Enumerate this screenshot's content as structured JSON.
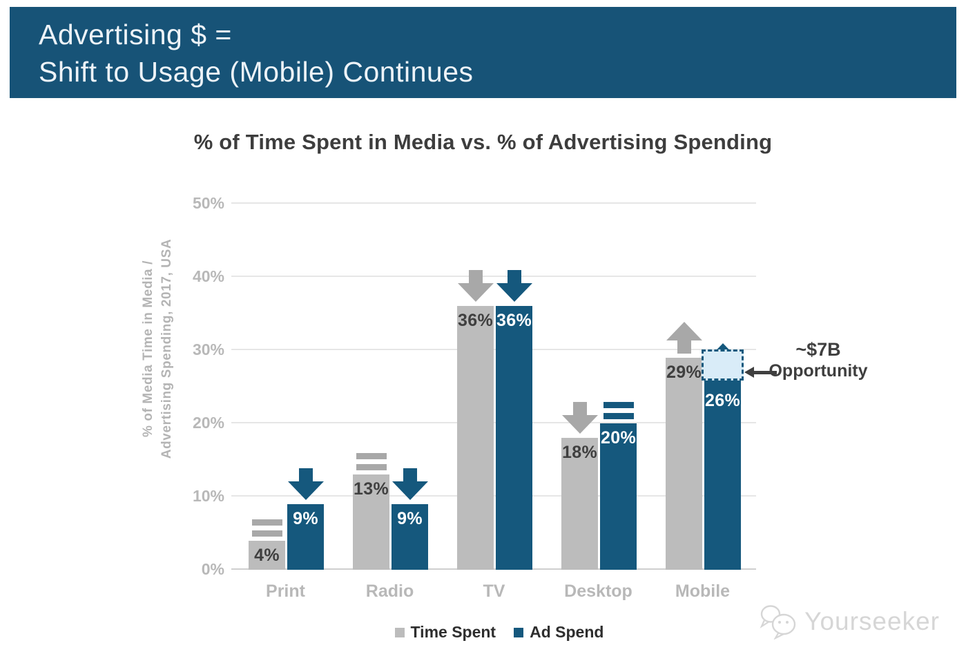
{
  "banner": {
    "line1": "Advertising $ =",
    "line2": "Shift to Usage (Mobile) Continues"
  },
  "chart_data": {
    "type": "bar",
    "title": "% of Time Spent in Media vs. % of Advertising Spending",
    "ylabel": [
      "% of Media Time in Media /",
      "Advertising Spending, 2017, USA"
    ],
    "categories": [
      "Print",
      "Radio",
      "TV",
      "Desktop",
      "Mobile"
    ],
    "series": [
      {
        "name": "Time Spent",
        "values": [
          4,
          13,
          36,
          18,
          29
        ],
        "unit": "%",
        "trend_markers": [
          "flat",
          "flat",
          "down",
          "down",
          "up"
        ],
        "bar_color": "#bcbcbc",
        "marker_color": "#a8a8a8",
        "label_color": "#3f3f3f"
      },
      {
        "name": "Ad Spend",
        "values": [
          9,
          9,
          36,
          20,
          26
        ],
        "unit": "%",
        "trend_markers": [
          "down",
          "down",
          "down",
          "flat",
          "up"
        ],
        "bar_color": "#15587d",
        "marker_color": "#15587d",
        "label_color": "#ffffff"
      }
    ],
    "ylim": [
      0,
      50
    ],
    "yticks": [
      "0%",
      "10%",
      "20%",
      "30%",
      "40%",
      "50%"
    ],
    "grid": true,
    "legend_position": "bottom",
    "annotation": {
      "line1": "~$7B",
      "line2": "Opportunity",
      "category": "Mobile",
      "series": "Ad Spend",
      "gap_from": 26,
      "gap_to": 29.5
    }
  },
  "legend": [
    {
      "label": "Time Spent",
      "color": "#bcbcbc"
    },
    {
      "label": "Ad Spend",
      "color": "#15587d"
    }
  ],
  "watermark": {
    "text": "Yourseeker"
  },
  "theme": {
    "banner_bg": "#175377",
    "banner_text": "#edf3f8",
    "title_color": "#3d3d3d",
    "axis_text_color": "#b8b8b8",
    "grid_color": "#e6e6e6",
    "annotation_color": "#3f3f3f",
    "opportunity_fill": "#d9ecf8",
    "opportunity_border": "#15587d",
    "background": "#ffffff"
  }
}
